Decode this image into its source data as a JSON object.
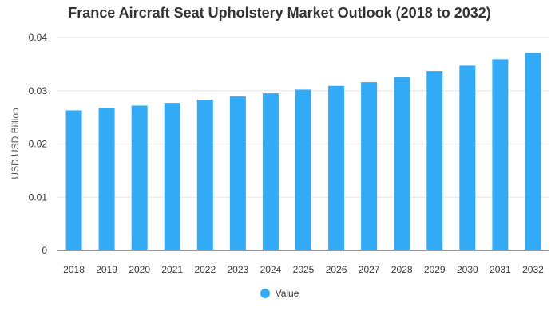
{
  "colors": {
    "bar": "#33aaf5",
    "grid": "#e6e6e6",
    "axis": "#333333"
  },
  "chart_data": {
    "type": "bar",
    "title": "France Aircraft Seat Upholstery Market Outlook (2018 to 2032)",
    "xlabel": "",
    "ylabel": "USD USD Billion",
    "ylim": [
      0,
      0.04
    ],
    "yticks": [
      "0",
      "0.01",
      "0.02",
      "0.03",
      "0.04"
    ],
    "grid": true,
    "legend_position": "bottom-center",
    "categories": [
      "2018",
      "2019",
      "2020",
      "2021",
      "2022",
      "2023",
      "2024",
      "2025",
      "2026",
      "2027",
      "2028",
      "2029",
      "2030",
      "2031",
      "2032"
    ],
    "series": [
      {
        "name": "Value",
        "values": [
          0.0263,
          0.0268,
          0.0272,
          0.0277,
          0.0283,
          0.0289,
          0.0295,
          0.0302,
          0.0309,
          0.0316,
          0.0326,
          0.0337,
          0.0347,
          0.0359,
          0.0371
        ]
      }
    ]
  }
}
